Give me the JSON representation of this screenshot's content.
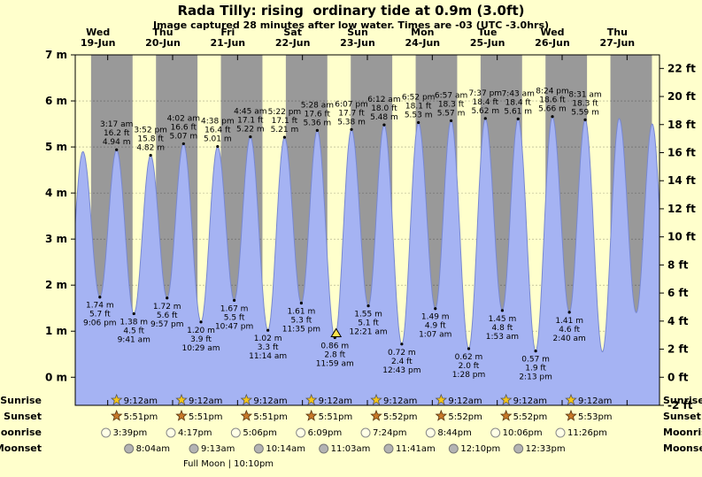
{
  "page": {
    "title": "Rada Tilly: rising  ordinary tide at 0.9m (3.0ft)",
    "subtitle": "Image captured 28 minutes after low water. Times are -03 (UTC -3.0hrs)"
  },
  "colors": {
    "background": "#ffffcc",
    "day_band": "#ffffcc",
    "night_band": "#999999",
    "tide_fill": "#a5b3f3",
    "tide_stroke": "#7888d0",
    "day_label": "#dd0000",
    "marker_fill": "#ffe14d",
    "sunrise_star": "#f5c518",
    "sunset_star": "#c87828",
    "moonrise_fill": "#ffffe6",
    "moonset_fill": "#b3b3b3",
    "text": "#000000"
  },
  "chart_data": {
    "type": "area",
    "title": "Rada Tilly: rising  ordinary tide at 0.9m (3.0ft)",
    "subtitle": "Image captured 28 minutes after low water. Times are -03 (UTC -3.0hrs)",
    "y_axis_left": {
      "unit": "m",
      "ticks": [
        0,
        1,
        2,
        3,
        4,
        5,
        6,
        7
      ],
      "min": -0.61,
      "max": 7
    },
    "y_axis_right": {
      "unit": "ft",
      "ticks": [
        -2,
        0,
        2,
        4,
        6,
        8,
        10,
        12,
        14,
        16,
        18,
        20,
        22
      ]
    },
    "days": [
      {
        "dow": "Wed",
        "date": "19-Jun"
      },
      {
        "dow": "Thu",
        "date": "20-Jun"
      },
      {
        "dow": "Fri",
        "date": "21-Jun"
      },
      {
        "dow": "Sat",
        "date": "22-Jun"
      },
      {
        "dow": "Sun",
        "date": "23-Jun"
      },
      {
        "dow": "Mon",
        "date": "24-Jun"
      },
      {
        "dow": "Tue",
        "date": "25-Jun"
      },
      {
        "dow": "Wed",
        "date": "26-Jun"
      },
      {
        "dow": "Thu",
        "date": "27-Jun"
      }
    ],
    "tide_events": [
      {
        "kind": "low",
        "t": -3.3,
        "m": 1.35,
        "annotated": false
      },
      {
        "kind": "high",
        "t": 2.83,
        "m": 4.9,
        "annotated": false
      },
      {
        "kind": "low",
        "t": 9.1,
        "m": 1.74,
        "annotated": true,
        "label_m": "1.74 m",
        "label_ft": "5.7 ft",
        "label_time": "9:06 pm"
      },
      {
        "kind": "high",
        "t": 15.28,
        "m": 4.94,
        "annotated": true,
        "label_time": "3:17 am",
        "label_ft": "16.2 ft",
        "label_m": "4.94 m"
      },
      {
        "kind": "low",
        "t": 21.68,
        "m": 1.38,
        "annotated": true,
        "label_m": "1.38 m",
        "label_ft": "4.5 ft",
        "label_time": "9:41 am"
      },
      {
        "kind": "high",
        "t": 27.87,
        "m": 4.82,
        "annotated": true,
        "label_time": "3:52 pm",
        "label_ft": "15.8 ft",
        "label_m": "4.82 m"
      },
      {
        "kind": "low",
        "t": 33.95,
        "m": 1.72,
        "annotated": true,
        "label_m": "1.72 m",
        "label_ft": "5.6 ft",
        "label_time": "9:57 pm"
      },
      {
        "kind": "high",
        "t": 40.03,
        "m": 5.07,
        "annotated": true,
        "label_time": "4:02 am",
        "label_ft": "16.6 ft",
        "label_m": "5.07 m"
      },
      {
        "kind": "low",
        "t": 46.48,
        "m": 1.2,
        "annotated": true,
        "label_m": "1.20 m",
        "label_ft": "3.9 ft",
        "label_time": "10:29 am"
      },
      {
        "kind": "high",
        "t": 52.63,
        "m": 5.01,
        "annotated": true,
        "label_time": "4:38 pm",
        "label_ft": "16.4 ft",
        "label_m": "5.01 m"
      },
      {
        "kind": "low",
        "t": 58.78,
        "m": 1.67,
        "annotated": true,
        "label_m": "1.67 m",
        "label_ft": "5.5 ft",
        "label_time": "10:47 pm"
      },
      {
        "kind": "high",
        "t": 64.75,
        "m": 5.22,
        "annotated": true,
        "label_time": "4:45 am",
        "label_ft": "17.1 ft",
        "label_m": "5.22 m"
      },
      {
        "kind": "low",
        "t": 71.23,
        "m": 1.02,
        "annotated": true,
        "label_m": "1.02 m",
        "label_ft": "3.3 ft",
        "label_time": "11:14 am"
      },
      {
        "kind": "high",
        "t": 77.37,
        "m": 5.21,
        "annotated": true,
        "label_time": "5:22 pm",
        "label_ft": "17.1 ft",
        "label_m": "5.21 m"
      },
      {
        "kind": "low",
        "t": 83.58,
        "m": 1.61,
        "annotated": true,
        "label_m": "1.61 m",
        "label_ft": "5.3 ft",
        "label_time": "11:35 pm"
      },
      {
        "kind": "high",
        "t": 89.47,
        "m": 5.36,
        "annotated": true,
        "label_time": "5:28 am",
        "label_ft": "17.6 ft",
        "label_m": "5.36 m"
      },
      {
        "kind": "low",
        "t": 95.98,
        "m": 0.86,
        "annotated": true,
        "label_m": "0.86 m",
        "label_ft": "2.8 ft",
        "label_time": "11:59 am"
      },
      {
        "kind": "high",
        "t": 102.12,
        "m": 5.38,
        "annotated": true,
        "label_time": "6:07 pm",
        "label_ft": "17.7 ft",
        "label_m": "5.38 m"
      },
      {
        "kind": "low",
        "t": 108.35,
        "m": 1.55,
        "annotated": true,
        "label_m": "1.55 m",
        "label_ft": "5.1 ft",
        "label_time": "12:21 am"
      },
      {
        "kind": "high",
        "t": 114.2,
        "m": 5.48,
        "annotated": true,
        "label_time": "6:12 am",
        "label_ft": "18.0 ft",
        "label_m": "5.48 m"
      },
      {
        "kind": "low",
        "t": 120.72,
        "m": 0.72,
        "annotated": true,
        "label_m": "0.72 m",
        "label_ft": "2.4 ft",
        "label_time": "12:43 pm"
      },
      {
        "kind": "high",
        "t": 126.87,
        "m": 5.53,
        "annotated": true,
        "label_time": "6:52 pm",
        "label_ft": "18.1 ft",
        "label_m": "5.53 m"
      },
      {
        "kind": "low",
        "t": 133.12,
        "m": 1.49,
        "annotated": true,
        "label_m": "1.49 m",
        "label_ft": "4.9 ft",
        "label_time": "1:07 am"
      },
      {
        "kind": "high",
        "t": 138.95,
        "m": 5.57,
        "annotated": true,
        "label_time": "6:57 am",
        "label_ft": "18.3 ft",
        "label_m": "5.57 m"
      },
      {
        "kind": "low",
        "t": 145.47,
        "m": 0.62,
        "annotated": true,
        "label_m": "0.62 m",
        "label_ft": "2.0 ft",
        "label_time": "1:28 pm"
      },
      {
        "kind": "high",
        "t": 151.62,
        "m": 5.62,
        "annotated": true,
        "label_time": "7:37 pm",
        "label_ft": "18.4 ft",
        "label_m": "5.62 m"
      },
      {
        "kind": "low",
        "t": 157.88,
        "m": 1.45,
        "annotated": true,
        "label_m": "1.45 m",
        "label_ft": "4.8 ft",
        "label_time": "1:53 am"
      },
      {
        "kind": "high",
        "t": 163.72,
        "m": 5.61,
        "annotated": true,
        "label_time": "7:43 am",
        "label_ft": "18.4 ft",
        "label_m": "5.61 m"
      },
      {
        "kind": "low",
        "t": 170.22,
        "m": 0.57,
        "annotated": true,
        "label_m": "0.57 m",
        "label_ft": "1.9 ft",
        "label_time": "2:13 pm"
      },
      {
        "kind": "high",
        "t": 176.4,
        "m": 5.66,
        "annotated": true,
        "label_time": "8:24 pm",
        "label_ft": "18.6 ft",
        "label_m": "5.66 m"
      },
      {
        "kind": "low",
        "t": 182.67,
        "m": 1.41,
        "annotated": true,
        "label_m": "1.41 m",
        "label_ft": "4.6 ft",
        "label_time": "2:40 am"
      },
      {
        "kind": "high",
        "t": 188.52,
        "m": 5.59,
        "annotated": true,
        "label_time": "8:31 am",
        "label_ft": "18.3 ft",
        "label_m": "5.59 m"
      },
      {
        "kind": "low",
        "t": 194.9,
        "m": 0.55,
        "annotated": false
      },
      {
        "kind": "high",
        "t": 201.1,
        "m": 5.62,
        "annotated": false
      },
      {
        "kind": "low",
        "t": 207.4,
        "m": 1.4,
        "annotated": false
      },
      {
        "kind": "high",
        "t": 213.3,
        "m": 5.5,
        "annotated": false
      },
      {
        "kind": "low",
        "t": 219.6,
        "m": 0.6,
        "annotated": false
      }
    ],
    "current_marker": {
      "t": 96.45,
      "height_m": 0.9
    },
    "sun_moon": {
      "row_labels": [
        "Sunrise",
        "Sunset",
        "Moonrise",
        "Moonset"
      ],
      "sunrise_times": [
        "9:12am",
        "9:12am",
        "9:12am",
        "9:12am",
        "9:12am",
        "9:12am",
        "9:12am",
        "9:12am"
      ],
      "sunset_times": [
        "5:51pm",
        "5:51pm",
        "5:51pm",
        "5:51pm",
        "5:52pm",
        "5:52pm",
        "5:52pm",
        "5:53pm"
      ],
      "moonrise_times": [
        "3:39pm",
        "4:17pm",
        "5:06pm",
        "6:09pm",
        "7:24pm",
        "8:44pm",
        "10:06pm",
        "11:26pm"
      ],
      "moonset_times": [
        "8:04am",
        "9:13am",
        "10:14am",
        "11:03am",
        "11:41am",
        "12:10pm",
        "12:33pm"
      ],
      "footer": "Full Moon | 10:10pm"
    }
  }
}
